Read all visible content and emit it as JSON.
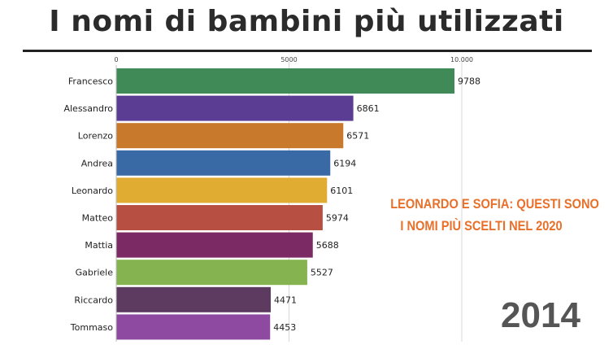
{
  "title": "I nomi di bambini più utilizzati",
  "annotation": {
    "line1": "Leonardo e Sofia: questi sono",
    "line2": "i nomi più scelti nel 2020"
  },
  "year": "2014",
  "chart_data": {
    "type": "bar",
    "orientation": "horizontal",
    "title": "I nomi di bambini più utilizzati",
    "xlim": [
      0,
      10000
    ],
    "ticks": [
      {
        "value": 0,
        "label": "0"
      },
      {
        "value": 5000,
        "label": "5000"
      },
      {
        "value": 10000,
        "label": "10.000"
      }
    ],
    "categories": [
      "Francesco",
      "Alessandro",
      "Lorenzo",
      "Andrea",
      "Leonardo",
      "Matteo",
      "Mattia",
      "Gabriele",
      "Riccardo",
      "Tommaso"
    ],
    "values": [
      9788,
      6861,
      6571,
      6194,
      6101,
      5974,
      5688,
      5527,
      4471,
      4453
    ],
    "colors": [
      "#3f8a57",
      "#5b3e93",
      "#c8792c",
      "#3a6aa5",
      "#e0ad32",
      "#b75043",
      "#7b2a64",
      "#84b34f",
      "#5d3a60",
      "#8e4aa0"
    ],
    "grid": true
  }
}
